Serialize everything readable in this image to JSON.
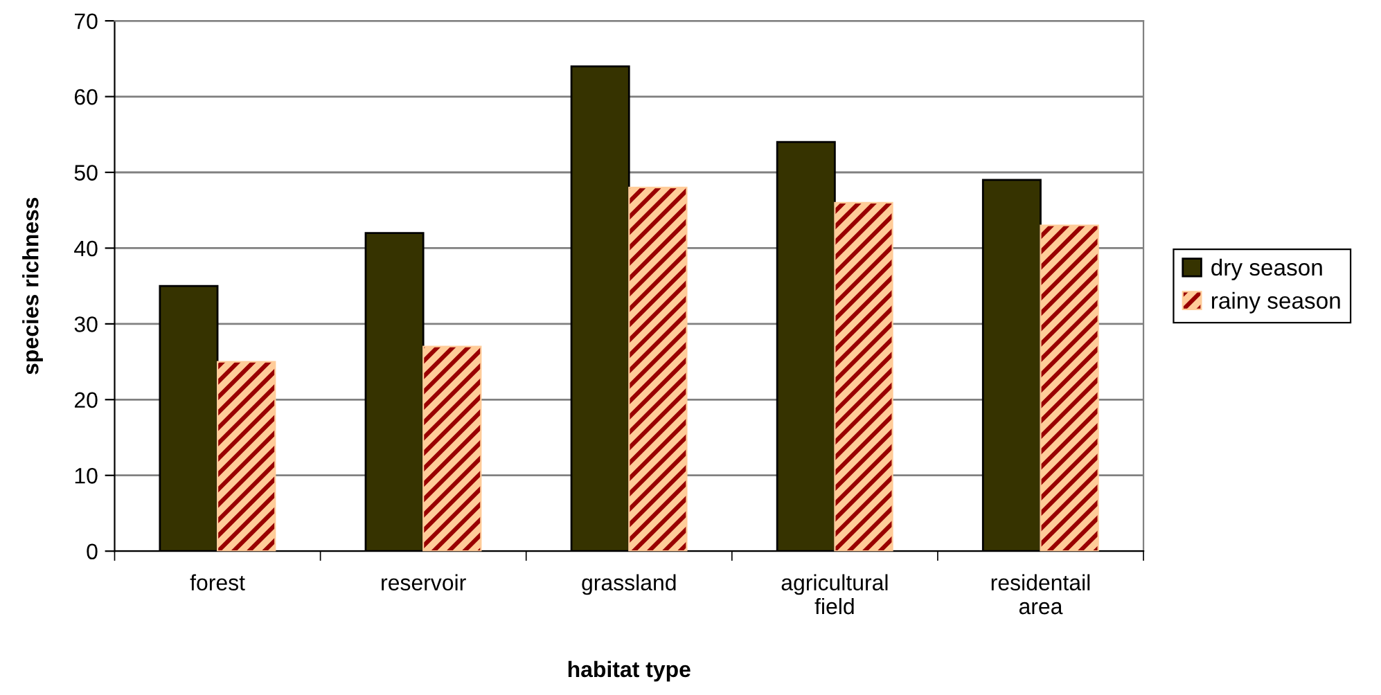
{
  "chart_data": {
    "type": "bar",
    "xlabel": "habitat type",
    "ylabel": "species richness",
    "categories": [
      "forest",
      "reservoir",
      "grassland",
      "agricultural\nfield",
      "residentail\narea"
    ],
    "series": [
      {
        "name": "dry season",
        "color": "#363300",
        "values": [
          35,
          42,
          64,
          54,
          49
        ]
      },
      {
        "name": "rainy season",
        "color": "#ffcc99",
        "values": [
          25,
          27,
          48,
          46,
          43
        ]
      }
    ],
    "ylim": [
      0,
      70
    ],
    "yticks": [
      0,
      10,
      20,
      30,
      40,
      50,
      60,
      70
    ],
    "grid": "y",
    "legend": "right"
  }
}
